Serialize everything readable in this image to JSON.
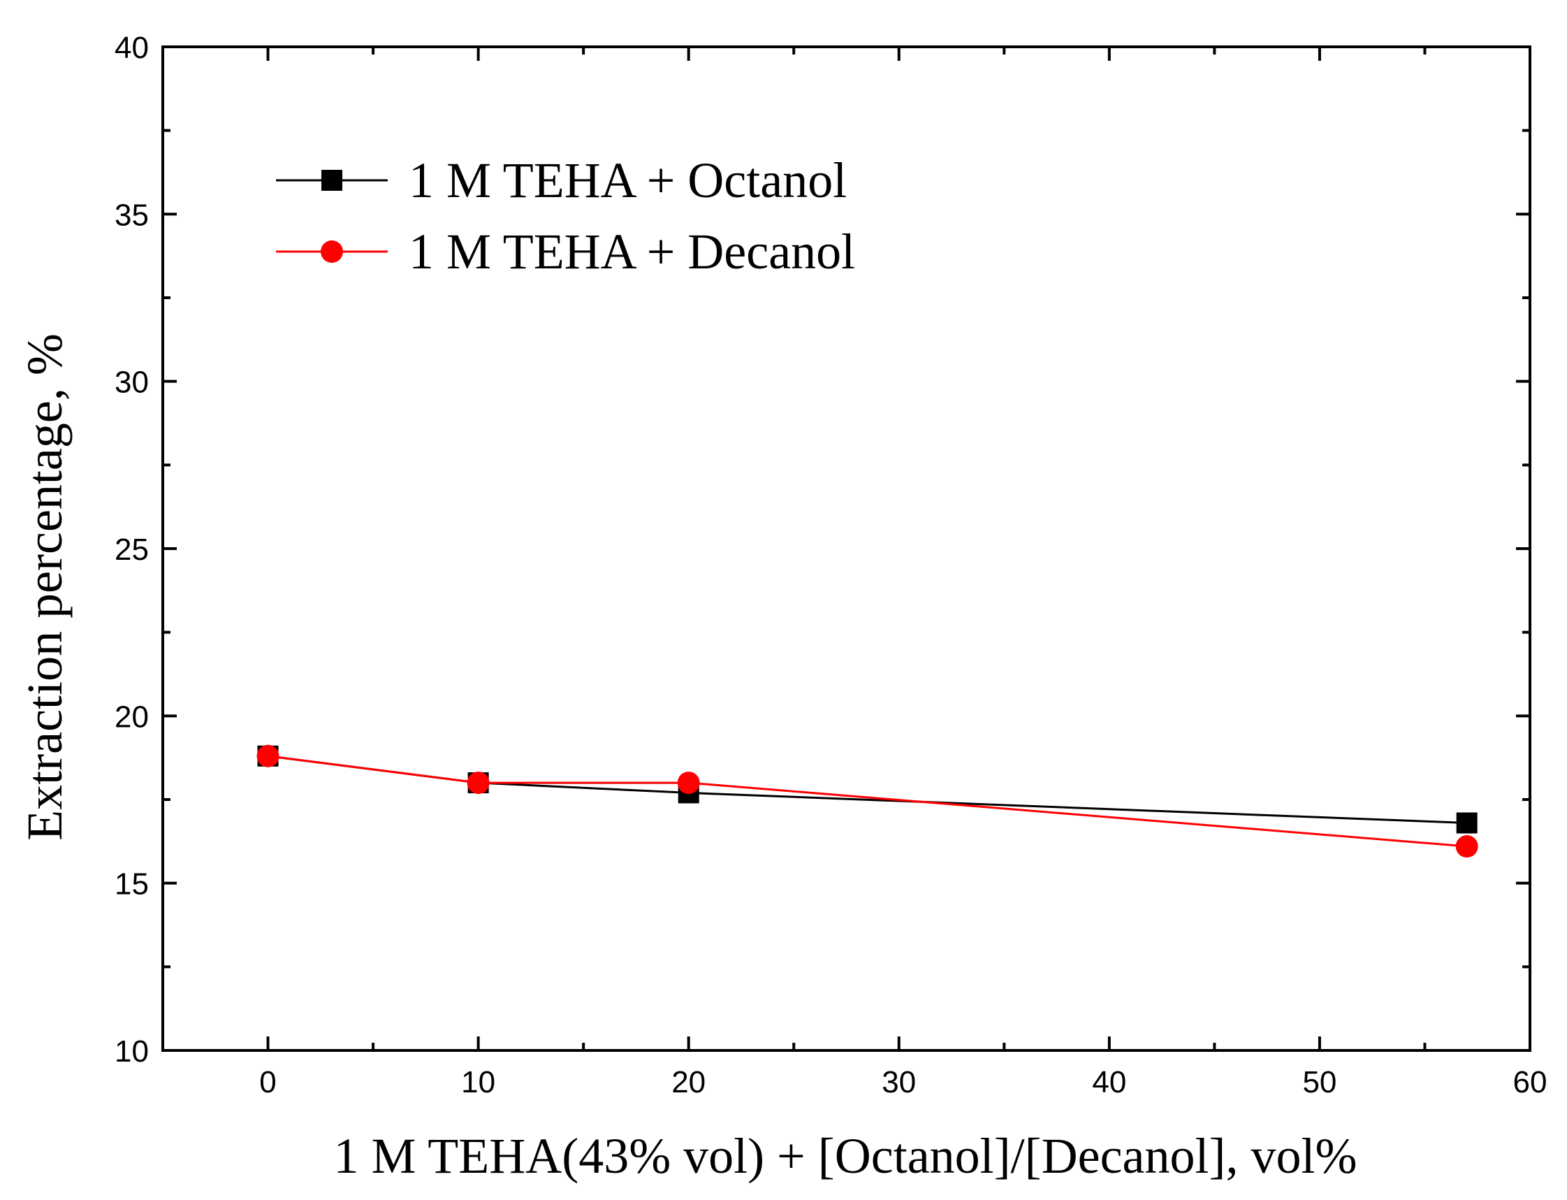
{
  "chart_data": {
    "type": "line",
    "title": "",
    "xlabel": "1 M TEHA(43% vol) + [Octanol]/[Decanol], vol%",
    "ylabel": "Extraction percentage, %",
    "xlim": [
      -5,
      60
    ],
    "ylim": [
      10,
      40
    ],
    "x_ticks": [
      0,
      10,
      20,
      30,
      40,
      50,
      60
    ],
    "x_tick_labels": [
      "0",
      "10",
      "20",
      "30",
      "40",
      "50",
      "60"
    ],
    "x_minor_ticks": [
      5,
      15,
      25,
      35,
      45,
      55
    ],
    "y_ticks": [
      10,
      15,
      20,
      25,
      30,
      35,
      40
    ],
    "y_tick_labels": [
      "10",
      "15",
      "20",
      "25",
      "30",
      "35",
      "40"
    ],
    "y_minor_ticks": [
      12.5,
      17.5,
      22.5,
      27.5,
      32.5,
      37.5
    ],
    "grid": false,
    "legend_position": "top-left",
    "series": [
      {
        "name": "1 M TEHA + Octanol",
        "color": "#000000",
        "marker": "square",
        "x": [
          0,
          10,
          20,
          57
        ],
        "y": [
          18.8,
          18.0,
          17.7,
          16.8
        ]
      },
      {
        "name": "1 M TEHA + Decanol",
        "color": "#ff0000",
        "marker": "circle",
        "x": [
          0,
          10,
          20,
          57
        ],
        "y": [
          18.8,
          18.0,
          18.0,
          16.1
        ]
      }
    ]
  }
}
